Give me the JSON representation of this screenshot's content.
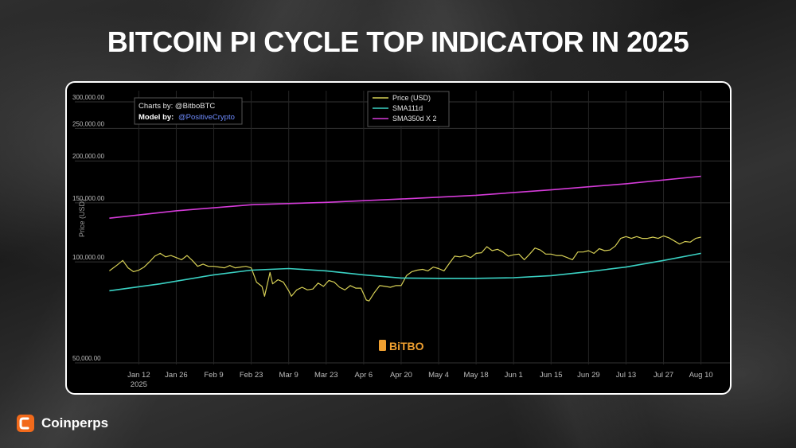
{
  "page": {
    "title": "BITCOIN PI CYCLE TOP INDICATOR IN 2025",
    "brand": "Coinperps",
    "brand_icon": "coinperps-logo-icon"
  },
  "chart_data": {
    "type": "line",
    "title": "",
    "xlabel": "",
    "ylabel": "Price (USD)",
    "ylog": true,
    "ylim": [
      50000,
      300000
    ],
    "y_ticks": [
      {
        "value": 300000,
        "label": "300,000.00"
      },
      {
        "value": 250000,
        "label": "250,000.00"
      },
      {
        "value": 200000,
        "label": "200,000.00"
      },
      {
        "value": 150000,
        "label": "150,000.00"
      },
      {
        "value": 100000,
        "label": "100,000.00"
      },
      {
        "value": 50000,
        "label": "50,000.00"
      }
    ],
    "x_range": [
      "2024-12-31",
      "2025-08-11"
    ],
    "x_ticks": [
      {
        "date": "2025-01-12",
        "label": "Jan 12",
        "sub": "2025"
      },
      {
        "date": "2025-01-26",
        "label": "Jan 26",
        "sub": ""
      },
      {
        "date": "2025-02-09",
        "label": "Feb 9",
        "sub": ""
      },
      {
        "date": "2025-02-23",
        "label": "Feb 23",
        "sub": ""
      },
      {
        "date": "2025-03-09",
        "label": "Mar 9",
        "sub": ""
      },
      {
        "date": "2025-03-23",
        "label": "Mar 23",
        "sub": ""
      },
      {
        "date": "2025-04-06",
        "label": "Apr 6",
        "sub": ""
      },
      {
        "date": "2025-04-20",
        "label": "Apr 20",
        "sub": ""
      },
      {
        "date": "2025-05-04",
        "label": "May 4",
        "sub": ""
      },
      {
        "date": "2025-05-18",
        "label": "May 18",
        "sub": ""
      },
      {
        "date": "2025-06-01",
        "label": "Jun 1",
        "sub": ""
      },
      {
        "date": "2025-06-15",
        "label": "Jun 15",
        "sub": ""
      },
      {
        "date": "2025-06-29",
        "label": "Jun 29",
        "sub": ""
      },
      {
        "date": "2025-07-13",
        "label": "Jul 13",
        "sub": ""
      },
      {
        "date": "2025-07-27",
        "label": "Jul 27",
        "sub": ""
      },
      {
        "date": "2025-08-10",
        "label": "Aug 10",
        "sub": ""
      }
    ],
    "grid": true,
    "legend_position": "top-center",
    "credits": {
      "line1": "Charts by: @BitboBTC",
      "line2_prefix": "Model by:",
      "line2_handle": "@PositiveCrypto"
    },
    "watermark": "BiTBO",
    "series": [
      {
        "name": "Price (USD)",
        "color": "#d6cf55",
        "points": [
          [
            "2025-01-01",
            94000
          ],
          [
            "2025-01-04",
            98000
          ],
          [
            "2025-01-06",
            101000
          ],
          [
            "2025-01-08",
            96000
          ],
          [
            "2025-01-10",
            93500
          ],
          [
            "2025-01-12",
            94500
          ],
          [
            "2025-01-14",
            96500
          ],
          [
            "2025-01-16",
            100000
          ],
          [
            "2025-01-18",
            104000
          ],
          [
            "2025-01-20",
            106000
          ],
          [
            "2025-01-22",
            103500
          ],
          [
            "2025-01-24",
            104500
          ],
          [
            "2025-01-26",
            103000
          ],
          [
            "2025-01-28",
            101500
          ],
          [
            "2025-01-30",
            104500
          ],
          [
            "2025-02-01",
            101000
          ],
          [
            "2025-02-03",
            97000
          ],
          [
            "2025-02-05",
            98500
          ],
          [
            "2025-02-07",
            97000
          ],
          [
            "2025-02-09",
            97000
          ],
          [
            "2025-02-11",
            96500
          ],
          [
            "2025-02-13",
            96000
          ],
          [
            "2025-02-15",
            97500
          ],
          [
            "2025-02-17",
            96000
          ],
          [
            "2025-02-19",
            96500
          ],
          [
            "2025-02-21",
            97000
          ],
          [
            "2025-02-23",
            96000
          ],
          [
            "2025-02-25",
            87000
          ],
          [
            "2025-02-27",
            84500
          ],
          [
            "2025-02-28",
            79000
          ],
          [
            "2025-03-02",
            93000
          ],
          [
            "2025-03-03",
            86000
          ],
          [
            "2025-03-05",
            88500
          ],
          [
            "2025-03-07",
            87000
          ],
          [
            "2025-03-09",
            82000
          ],
          [
            "2025-03-10",
            79000
          ],
          [
            "2025-03-12",
            82500
          ],
          [
            "2025-03-14",
            84000
          ],
          [
            "2025-03-16",
            82500
          ],
          [
            "2025-03-18",
            83000
          ],
          [
            "2025-03-20",
            86500
          ],
          [
            "2025-03-22",
            84500
          ],
          [
            "2025-03-24",
            88000
          ],
          [
            "2025-03-26",
            87000
          ],
          [
            "2025-03-28",
            84000
          ],
          [
            "2025-03-30",
            82500
          ],
          [
            "2025-04-01",
            85000
          ],
          [
            "2025-04-03",
            83500
          ],
          [
            "2025-04-05",
            83500
          ],
          [
            "2025-04-07",
            77000
          ],
          [
            "2025-04-08",
            76500
          ],
          [
            "2025-04-10",
            81000
          ],
          [
            "2025-04-12",
            85000
          ],
          [
            "2025-04-14",
            84500
          ],
          [
            "2025-04-16",
            84000
          ],
          [
            "2025-04-18",
            85000
          ],
          [
            "2025-04-20",
            85000
          ],
          [
            "2025-04-22",
            91000
          ],
          [
            "2025-04-24",
            93500
          ],
          [
            "2025-04-26",
            94500
          ],
          [
            "2025-04-28",
            95000
          ],
          [
            "2025-04-30",
            94000
          ],
          [
            "2025-05-02",
            96500
          ],
          [
            "2025-05-04",
            95500
          ],
          [
            "2025-05-06",
            94000
          ],
          [
            "2025-05-08",
            99000
          ],
          [
            "2025-05-10",
            104000
          ],
          [
            "2025-05-12",
            103500
          ],
          [
            "2025-05-14",
            104500
          ],
          [
            "2025-05-16",
            103000
          ],
          [
            "2025-05-18",
            106000
          ],
          [
            "2025-05-20",
            106500
          ],
          [
            "2025-05-22",
            111000
          ],
          [
            "2025-05-24",
            108000
          ],
          [
            "2025-05-26",
            109000
          ],
          [
            "2025-05-28",
            107000
          ],
          [
            "2025-05-30",
            104000
          ],
          [
            "2025-06-01",
            105000
          ],
          [
            "2025-06-03",
            105500
          ],
          [
            "2025-06-05",
            101500
          ],
          [
            "2025-06-07",
            105500
          ],
          [
            "2025-06-09",
            110000
          ],
          [
            "2025-06-11",
            108500
          ],
          [
            "2025-06-13",
            105500
          ],
          [
            "2025-06-15",
            105500
          ],
          [
            "2025-06-17",
            104500
          ],
          [
            "2025-06-19",
            104500
          ],
          [
            "2025-06-21",
            103000
          ],
          [
            "2025-06-23",
            101500
          ],
          [
            "2025-06-25",
            107000
          ],
          [
            "2025-06-27",
            107000
          ],
          [
            "2025-06-29",
            108000
          ],
          [
            "2025-07-01",
            106000
          ],
          [
            "2025-07-03",
            109500
          ],
          [
            "2025-07-05",
            108000
          ],
          [
            "2025-07-07",
            108500
          ],
          [
            "2025-07-09",
            111500
          ],
          [
            "2025-07-11",
            117500
          ],
          [
            "2025-07-13",
            119000
          ],
          [
            "2025-07-15",
            117500
          ],
          [
            "2025-07-17",
            119000
          ],
          [
            "2025-07-19",
            117500
          ],
          [
            "2025-07-21",
            117500
          ],
          [
            "2025-07-23",
            118500
          ],
          [
            "2025-07-25",
            117500
          ],
          [
            "2025-07-27",
            119500
          ],
          [
            "2025-07-29",
            118000
          ],
          [
            "2025-07-31",
            115500
          ],
          [
            "2025-08-02",
            113000
          ],
          [
            "2025-08-04",
            115000
          ],
          [
            "2025-08-06",
            114500
          ],
          [
            "2025-08-08",
            117500
          ],
          [
            "2025-08-10",
            118500
          ]
        ]
      },
      {
        "name": "SMA111d",
        "color": "#3ad1c3",
        "points": [
          [
            "2025-01-01",
            82000
          ],
          [
            "2025-01-20",
            86000
          ],
          [
            "2025-02-09",
            91500
          ],
          [
            "2025-02-23",
            94500
          ],
          [
            "2025-03-09",
            95500
          ],
          [
            "2025-03-23",
            94000
          ],
          [
            "2025-04-06",
            91500
          ],
          [
            "2025-04-20",
            89500
          ],
          [
            "2025-05-04",
            89300
          ],
          [
            "2025-05-18",
            89300
          ],
          [
            "2025-06-01",
            89700
          ],
          [
            "2025-06-15",
            91000
          ],
          [
            "2025-06-29",
            93500
          ],
          [
            "2025-07-13",
            96500
          ],
          [
            "2025-07-27",
            101000
          ],
          [
            "2025-08-10",
            106000
          ]
        ]
      },
      {
        "name": "SMA350d X 2",
        "color": "#d53bd9",
        "points": [
          [
            "2025-01-01",
            135000
          ],
          [
            "2025-01-26",
            142000
          ],
          [
            "2025-02-23",
            148000
          ],
          [
            "2025-03-23",
            150500
          ],
          [
            "2025-04-20",
            154000
          ],
          [
            "2025-05-18",
            158000
          ],
          [
            "2025-06-15",
            164000
          ],
          [
            "2025-07-13",
            171000
          ],
          [
            "2025-08-10",
            180000
          ]
        ]
      }
    ]
  }
}
